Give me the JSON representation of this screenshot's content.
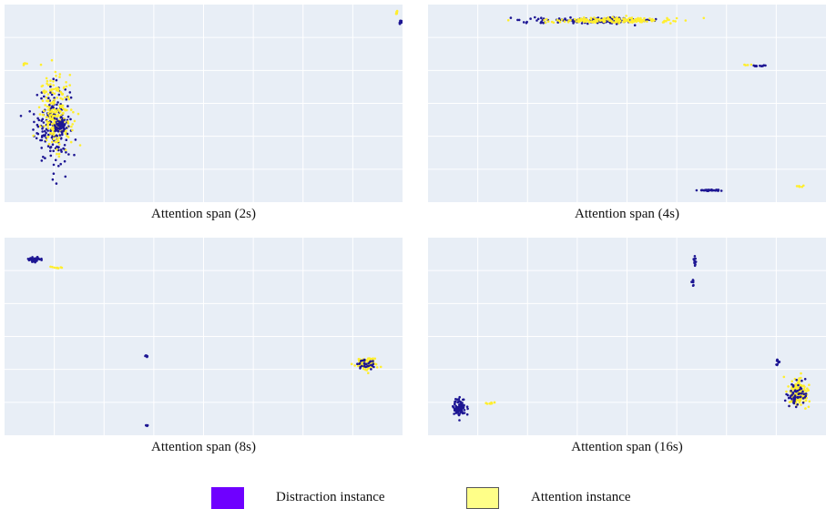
{
  "colors": {
    "plot_bg": "#e8eef6",
    "grid": "#ffffff",
    "distraction": "#1d1693",
    "attention": "#ffee2e",
    "legend_distraction": "#6f00ff",
    "legend_attention": "#ffff88"
  },
  "legend": {
    "distraction_label": "Distraction instance",
    "attention_label": "Attention instance"
  },
  "chart_data": [
    {
      "type": "scatter",
      "caption": "Attention span (2s)",
      "xlim": [
        0,
        100
      ],
      "ylim": [
        0,
        100
      ],
      "grid": true,
      "clusters": [
        {
          "series": "distraction",
          "cx": 12,
          "cy": 40,
          "sx": 4.5,
          "sy": 20,
          "n": 180
        },
        {
          "series": "attention",
          "cx": 13,
          "cy": 45,
          "sx": 4,
          "sy": 18,
          "n": 200
        },
        {
          "series": "distraction",
          "cx": 14,
          "cy": 38,
          "sx": 1.5,
          "sy": 4,
          "n": 60
        },
        {
          "series": "distraction",
          "cx": 99.5,
          "cy": 91,
          "sx": 0.3,
          "sy": 1.2,
          "n": 14
        },
        {
          "series": "attention",
          "cx": 98.5,
          "cy": 96,
          "sx": 0.2,
          "sy": 1.5,
          "n": 8
        },
        {
          "series": "attention",
          "cx": 5,
          "cy": 70,
          "sx": 0.5,
          "sy": 1.2,
          "n": 6
        }
      ]
    },
    {
      "type": "scatter",
      "caption": "Attention span (4s)",
      "xlim": [
        0,
        100
      ],
      "ylim": [
        0,
        100
      ],
      "grid": true,
      "clusters": [
        {
          "series": "distraction",
          "cx": 42,
          "cy": 92,
          "sx": 16,
          "sy": 1.4,
          "n": 160
        },
        {
          "series": "attention",
          "cx": 45,
          "cy": 92,
          "sx": 16,
          "sy": 1.4,
          "n": 180
        },
        {
          "series": "distraction",
          "cx": 83,
          "cy": 69,
          "sx": 2.5,
          "sy": 0.3,
          "n": 14
        },
        {
          "series": "attention",
          "cx": 80,
          "cy": 69.5,
          "sx": 1,
          "sy": 0.3,
          "n": 4
        },
        {
          "series": "distraction",
          "cx": 71,
          "cy": 6,
          "sx": 2.8,
          "sy": 0.3,
          "n": 40
        },
        {
          "series": "attention",
          "cx": 93,
          "cy": 8,
          "sx": 2,
          "sy": 0.3,
          "n": 6
        }
      ]
    },
    {
      "type": "scatter",
      "caption": "Attention span (8s)",
      "xlim": [
        0,
        100
      ],
      "ylim": [
        0,
        100
      ],
      "grid": true,
      "clusters": [
        {
          "series": "distraction",
          "cx": 7.5,
          "cy": 89,
          "sx": 1.6,
          "sy": 1.2,
          "n": 45
        },
        {
          "series": "attention",
          "cx": 13,
          "cy": 85,
          "sx": 2.2,
          "sy": 0.6,
          "n": 8
        },
        {
          "series": "distraction",
          "cx": 35.7,
          "cy": 40,
          "sx": 0.3,
          "sy": 0.6,
          "n": 6
        },
        {
          "series": "distraction",
          "cx": 35.8,
          "cy": 5,
          "sx": 0.3,
          "sy": 0.4,
          "n": 5
        },
        {
          "series": "attention",
          "cx": 91,
          "cy": 36,
          "sx": 2.8,
          "sy": 2.8,
          "n": 90
        },
        {
          "series": "distraction",
          "cx": 91,
          "cy": 36,
          "sx": 2.5,
          "sy": 2.5,
          "n": 30
        }
      ]
    },
    {
      "type": "scatter",
      "caption": "Attention span (16s)",
      "xlim": [
        0,
        100
      ],
      "ylim": [
        0,
        100
      ],
      "grid": true,
      "clusters": [
        {
          "series": "distraction",
          "cx": 8,
          "cy": 14,
          "sx": 1.6,
          "sy": 5,
          "n": 80
        },
        {
          "series": "attention",
          "cx": 16,
          "cy": 16,
          "sx": 1.5,
          "sy": 1,
          "n": 10
        },
        {
          "series": "distraction",
          "cx": 67,
          "cy": 88,
          "sx": 0.4,
          "sy": 3,
          "n": 14
        },
        {
          "series": "distraction",
          "cx": 66.5,
          "cy": 77,
          "sx": 0.4,
          "sy": 2,
          "n": 8
        },
        {
          "series": "attention",
          "cx": 93,
          "cy": 22,
          "sx": 2.5,
          "sy": 7,
          "n": 150
        },
        {
          "series": "distraction",
          "cx": 92.5,
          "cy": 21,
          "sx": 2.5,
          "sy": 7,
          "n": 55
        },
        {
          "series": "distraction",
          "cx": 88,
          "cy": 37,
          "sx": 0.8,
          "sy": 2,
          "n": 10
        }
      ]
    }
  ]
}
